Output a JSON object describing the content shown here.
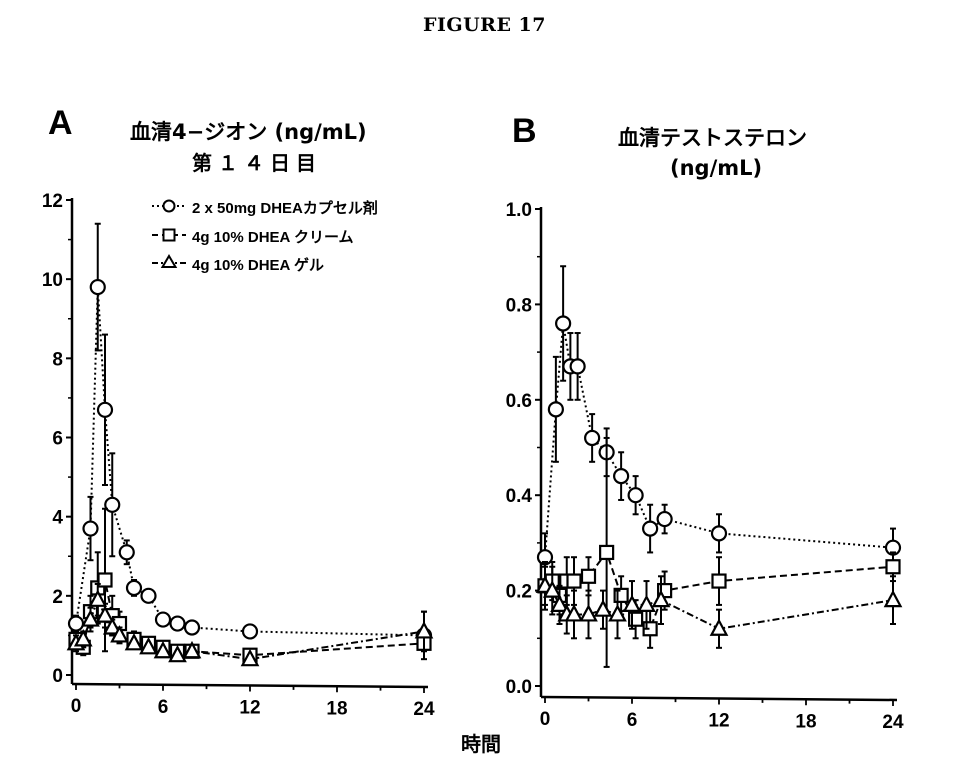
{
  "figure": {
    "title": "FIGURE 17",
    "x_axis_label": "時間"
  },
  "panels": [
    {
      "letter": "A",
      "title": "血清4−ジオン (ng/mL)",
      "subtitle": "第１４日目",
      "y_ticks": [
        "0",
        "2",
        "4",
        "6",
        "8",
        "10",
        "12"
      ],
      "x_ticks": [
        "0",
        "6",
        "12",
        "18",
        "24"
      ]
    },
    {
      "letter": "B",
      "title": "血清テストステロン",
      "subtitle": "(ng/mL)",
      "y_ticks": [
        "0.0",
        "0.2",
        "0.4",
        "0.6",
        "0.8",
        "1.0"
      ],
      "x_ticks": [
        "0",
        "6",
        "12",
        "18",
        "24"
      ]
    }
  ],
  "legend": [
    {
      "marker": "circle",
      "line": "dotted",
      "label": "2 x 50mg DHEAカプセル剤"
    },
    {
      "marker": "square",
      "line": "dashed",
      "label": "4g 10% DHEA クリーム"
    },
    {
      "marker": "triangle",
      "line": "dash-dot",
      "label": "4g 10% DHEA ゲル"
    }
  ],
  "chart_data": [
    {
      "type": "line",
      "panel": "A",
      "title": "血清4−ジオン (ng/mL) 第１４日目",
      "xlabel": "時間",
      "ylabel": "",
      "xlim": [
        0,
        24
      ],
      "ylim": [
        0,
        12
      ],
      "x_ticks": [
        0,
        6,
        12,
        18,
        24
      ],
      "y_ticks": [
        0,
        2,
        4,
        6,
        8,
        10,
        12
      ],
      "grid": false,
      "legend_position": "upper right (inside)",
      "error_bars": true,
      "series": [
        {
          "name": "2 x 50mg DHEAカプセル剤",
          "marker": "circle",
          "line": "dotted",
          "x": [
            0,
            1,
            1.5,
            2,
            2.5,
            3.5,
            4,
            5,
            6,
            7,
            8,
            12,
            24
          ],
          "y": [
            1.3,
            3.7,
            9.8,
            6.7,
            4.3,
            3.1,
            2.2,
            2.0,
            1.4,
            1.3,
            1.2,
            1.1,
            1.0
          ],
          "err": [
            0.2,
            0.8,
            1.6,
            1.9,
            1.3,
            0.3,
            0.2,
            0.1,
            0.1,
            0.1,
            0.1,
            0.1,
            0.6
          ]
        },
        {
          "name": "4g 10% DHEA クリーム",
          "marker": "square",
          "line": "dashed",
          "x": [
            0,
            0.5,
            1,
            1.5,
            2,
            2.5,
            3,
            4,
            5,
            6,
            7,
            8,
            12,
            24
          ],
          "y": [
            0.9,
            0.7,
            1.6,
            2.2,
            2.4,
            1.5,
            1.3,
            0.9,
            0.8,
            0.7,
            0.6,
            0.6,
            0.5,
            0.8
          ],
          "err": [
            0.2,
            0.2,
            0.4,
            0.9,
            1.8,
            0.5,
            0.3,
            0.2,
            0.1,
            0.1,
            0.1,
            0.1,
            0.1,
            0.1
          ]
        },
        {
          "name": "4g 10% DHEA ゲル",
          "marker": "triangle",
          "line": "dash-dot",
          "x": [
            0,
            0.5,
            1,
            1.5,
            2,
            2.5,
            3,
            4,
            5,
            6,
            7,
            8,
            12,
            24
          ],
          "y": [
            0.8,
            0.9,
            1.4,
            1.9,
            1.5,
            1.2,
            1.0,
            0.8,
            0.7,
            0.6,
            0.5,
            0.6,
            0.4,
            1.1
          ],
          "err": [
            0.2,
            0.2,
            0.3,
            0.4,
            0.3,
            0.2,
            0.2,
            0.1,
            0.1,
            0.1,
            0.1,
            0.1,
            0.1,
            0.5
          ]
        }
      ]
    },
    {
      "type": "line",
      "panel": "B",
      "title": "血清テストステロン (ng/mL)",
      "xlabel": "時間",
      "ylabel": "",
      "xlim": [
        0,
        24
      ],
      "ylim": [
        0.0,
        1.0
      ],
      "x_ticks": [
        0,
        6,
        12,
        18,
        24
      ],
      "y_ticks": [
        0.0,
        0.2,
        0.4,
        0.6,
        0.8,
        1.0
      ],
      "grid": false,
      "error_bars": true,
      "series": [
        {
          "name": "2 x 50mg DHEAカプセル剤",
          "marker": "circle",
          "line": "dotted",
          "x": [
            0,
            0.75,
            1.25,
            1.75,
            2.25,
            3.25,
            4.25,
            5.25,
            6.25,
            7.25,
            8.25,
            12,
            24
          ],
          "y": [
            0.27,
            0.58,
            0.76,
            0.67,
            0.67,
            0.52,
            0.49,
            0.44,
            0.4,
            0.33,
            0.35,
            0.32,
            0.29
          ],
          "err": [
            0.05,
            0.11,
            0.12,
            0.07,
            0.07,
            0.05,
            0.05,
            0.05,
            0.04,
            0.05,
            0.03,
            0.04,
            0.04
          ]
        },
        {
          "name": "4g 10% DHEA クリーム",
          "marker": "square",
          "line": "dashed",
          "x": [
            0,
            0.5,
            1,
            1.5,
            2,
            3,
            4.25,
            5.25,
            6.25,
            7.25,
            8.25,
            12,
            24
          ],
          "y": [
            0.21,
            0.22,
            0.19,
            0.22,
            0.22,
            0.23,
            0.28,
            0.19,
            0.14,
            0.12,
            0.2,
            0.22,
            0.25
          ],
          "err": [
            0.04,
            0.04,
            0.04,
            0.05,
            0.05,
            0.04,
            0.24,
            0.04,
            0.04,
            0.04,
            0.04,
            0.05,
            0.03
          ]
        },
        {
          "name": "4g 10% DHEA ゲル",
          "marker": "triangle",
          "line": "dash-dot",
          "x": [
            0,
            0.5,
            1,
            1.5,
            2,
            3,
            4,
            5,
            6,
            7,
            8,
            12,
            24
          ],
          "y": [
            0.21,
            0.2,
            0.17,
            0.15,
            0.15,
            0.15,
            0.16,
            0.15,
            0.17,
            0.17,
            0.18,
            0.12,
            0.18
          ],
          "err": [
            0.05,
            0.05,
            0.04,
            0.04,
            0.05,
            0.05,
            0.04,
            0.05,
            0.05,
            0.05,
            0.05,
            0.04,
            0.05
          ]
        }
      ]
    }
  ]
}
